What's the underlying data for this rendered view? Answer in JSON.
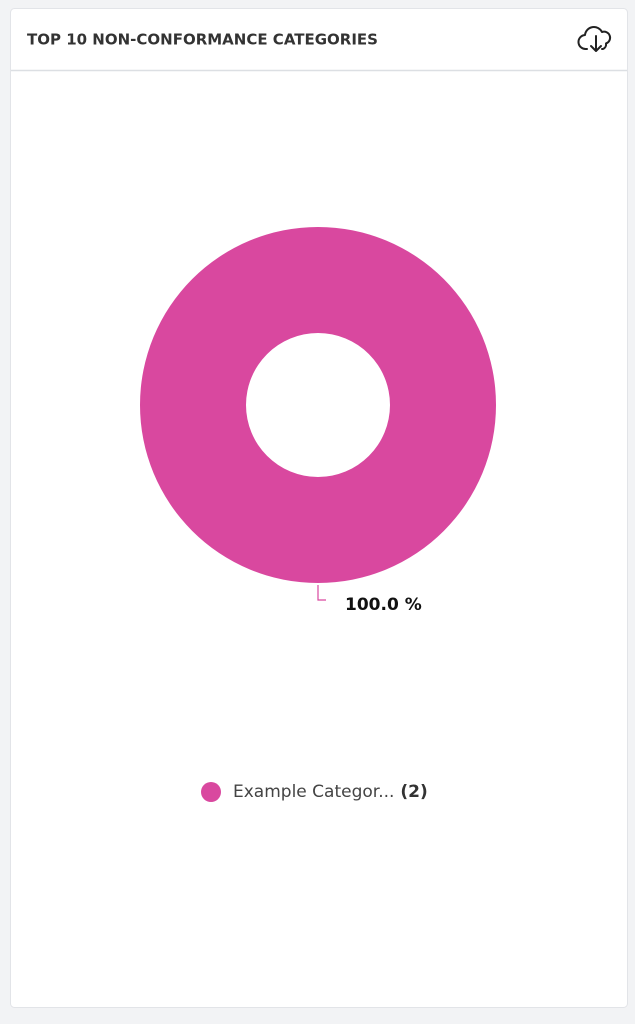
{
  "chart_data": {
    "type": "pie",
    "title": "TOP 10 NON-CONFORMANCE CATEGORIES",
    "categories": [
      "Example Categor..."
    ],
    "values": [
      100.0
    ],
    "value_labels": [
      "100.0 %"
    ],
    "count_labels": [
      "(2)"
    ],
    "colors": [
      "#d9489f"
    ],
    "donut": true,
    "legend": "bottom"
  }
}
